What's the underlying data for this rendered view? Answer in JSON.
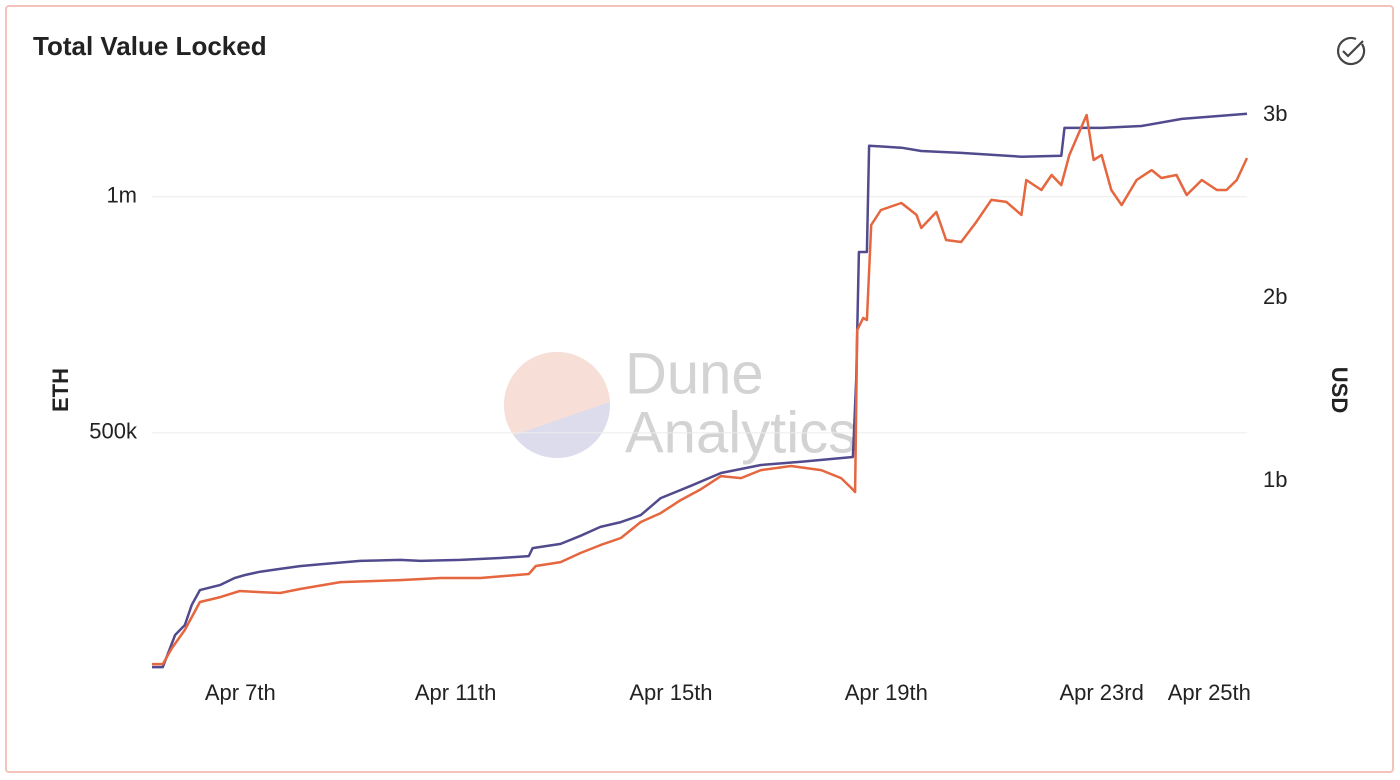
{
  "chart_data": {
    "type": "line",
    "title": "Total Value Locked",
    "watermark": [
      "Dune",
      "Analytics"
    ],
    "ylabel": "ETH",
    "y2label": "USD",
    "xlim": [
      5.36,
      25.7
    ],
    "xticks": [
      {
        "value": 7,
        "label": "Apr 7th"
      },
      {
        "value": 11,
        "label": "Apr 11th"
      },
      {
        "value": 15,
        "label": "Apr 15th"
      },
      {
        "value": 19,
        "label": "Apr 19th"
      },
      {
        "value": 23,
        "label": "Apr 23rd"
      },
      {
        "value": 25,
        "label": "Apr 25th"
      }
    ],
    "ylim": [
      0,
      1205000
    ],
    "yticks": [
      {
        "value": 500000,
        "label": "500k"
      },
      {
        "value": 1000000,
        "label": "1m"
      }
    ],
    "y2lim": [
      -27000000,
      3082000000
    ],
    "y2ticks": [
      {
        "value": 1000000000,
        "label": "1b"
      },
      {
        "value": 2000000000,
        "label": "2b"
      },
      {
        "value": 3000000000,
        "label": "3b"
      }
    ],
    "grid": true,
    "series": [
      {
        "color": "#514b8e",
        "x": [
          5.36,
          5.56,
          5.79,
          5.97,
          6.1,
          6.25,
          6.63,
          6.9,
          7.09,
          7.37,
          7.74,
          8.11,
          8.49,
          9.23,
          9.97,
          10.35,
          11.09,
          11.83,
          12.36,
          12.43,
          12.95,
          13.32,
          13.69,
          14.07,
          14.44,
          14.81,
          15.37,
          15.93,
          16.67,
          17.42,
          18.38,
          18.44,
          18.49,
          18.64,
          18.68,
          19.28,
          19.65,
          20.39,
          21.51,
          22.25,
          22.31,
          23.0,
          23.74,
          24.49,
          25.7
        ],
        "values": [
          4000,
          4000,
          72000,
          93000,
          136000,
          167000,
          178000,
          193000,
          199000,
          206000,
          212000,
          218000,
          222000,
          229000,
          231000,
          229000,
          231000,
          235000,
          239000,
          256000,
          265000,
          282000,
          301000,
          311000,
          326000,
          362000,
          388000,
          415000,
          432000,
          439000,
          449000,
          612000,
          883000,
          883000,
          1108000,
          1104000,
          1097000,
          1093000,
          1085000,
          1087000,
          1146000,
          1146000,
          1150000,
          1165000,
          1176000
        ]
      },
      {
        "color": "#e5663f",
        "axis": "y2",
        "x": [
          5.36,
          5.56,
          5.73,
          5.97,
          6.25,
          6.63,
          6.99,
          7.37,
          7.74,
          8.11,
          8.86,
          9.97,
          10.72,
          11.46,
          12.36,
          12.49,
          12.95,
          13.32,
          13.69,
          14.07,
          14.44,
          14.81,
          15.18,
          15.56,
          15.93,
          16.3,
          16.67,
          17.23,
          17.79,
          18.16,
          18.35,
          18.42,
          18.46,
          18.57,
          18.64,
          18.72,
          18.9,
          19.28,
          19.56,
          19.65,
          19.93,
          20.11,
          20.39,
          20.67,
          20.95,
          21.23,
          21.51,
          21.6,
          21.88,
          22.07,
          22.25,
          22.4,
          22.72,
          22.85,
          23.0,
          23.18,
          23.37,
          23.65,
          23.93,
          24.11,
          24.39,
          24.58,
          24.86,
          25.14,
          25.32,
          25.51,
          25.7
        ],
        "values": [
          0,
          0,
          87000000,
          186000000,
          339000000,
          366000000,
          399000000,
          393000000,
          388000000,
          410000000,
          448000000,
          459000000,
          470000000,
          470000000,
          492000000,
          536000000,
          557000000,
          607000000,
          650000000,
          689000000,
          776000000,
          825000000,
          896000000,
          956000000,
          1027000000,
          1016000000,
          1060000000,
          1082000000,
          1060000000,
          1016000000,
          962000000,
          940000000,
          1825000000,
          1891000000,
          1880000000,
          2399000000,
          2481000000,
          2519000000,
          2454000000,
          2383000000,
          2470000000,
          2317000000,
          2306000000,
          2415000000,
          2536000000,
          2525000000,
          2454000000,
          2645000000,
          2590000000,
          2672000000,
          2617000000,
          2781000000,
          3000000000,
          2754000000,
          2781000000,
          2590000000,
          2508000000,
          2645000000,
          2699000000,
          2656000000,
          2672000000,
          2563000000,
          2645000000,
          2590000000,
          2590000000,
          2645000000,
          2765000000
        ]
      }
    ]
  }
}
